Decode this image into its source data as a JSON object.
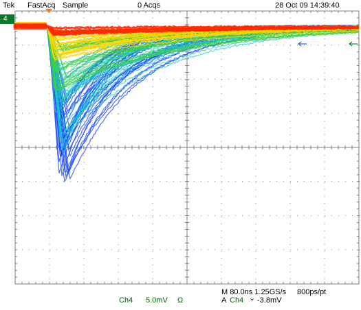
{
  "status_bar": {
    "brand": "Tek",
    "mode": "FastAcq",
    "acq_type": "Sample",
    "acqs": "0 Acqs",
    "datetime": "28 Oct 09 14:39:40"
  },
  "channel_marker": {
    "label": "4",
    "color": "#0b7a2e"
  },
  "readout": {
    "channel": "Ch4",
    "volts_per_div": "5.0mV",
    "termination": "Ω",
    "timebase": "M 80.0ns 1.25GS/s",
    "resolution": "800ps/pt",
    "trigger_source_prefix": "A",
    "trigger_channel": "Ch4",
    "trigger_slope_symbol": "⌄",
    "trigger_level": "-3.8mV"
  },
  "icons": {
    "trigger_position": "orange-triangle-down-icon",
    "ground_level": "right-arrow-icon",
    "horizontal_marker": "left-arrow-icon"
  },
  "colors": {
    "graticule": "#808080",
    "frame": "#7f7f7f",
    "trace_hot": "#ff2a00",
    "trace_warm": "#ffd400",
    "trace_mid": "#3fd23f",
    "trace_cool": "#19c6c6",
    "trace_cold": "#1040ff",
    "text_green": "#006600"
  }
}
